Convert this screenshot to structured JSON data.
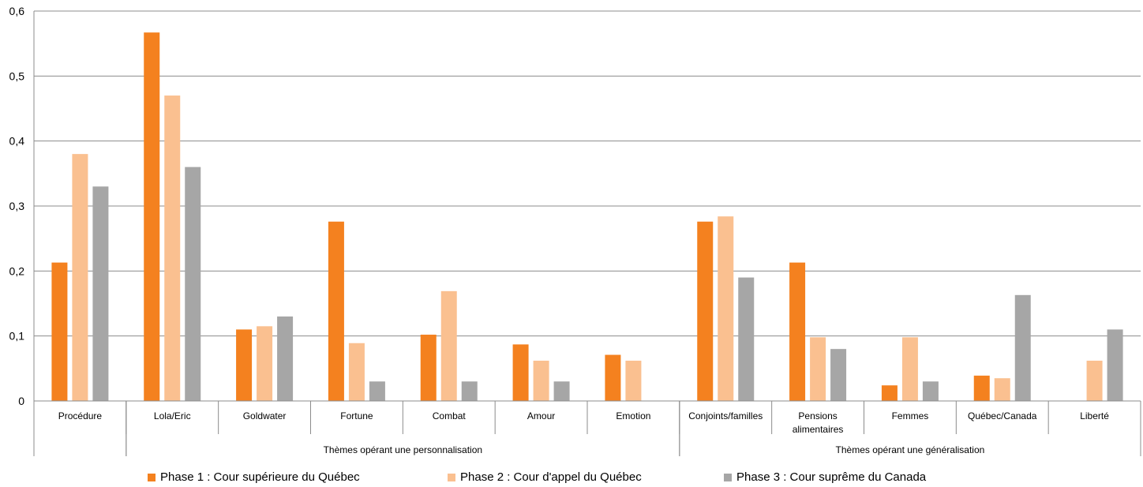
{
  "chart_data": {
    "type": "bar",
    "categories": [
      "Procédure",
      "Lola/Eric",
      "Goldwater",
      "Fortune",
      "Combat",
      "Amour",
      "Emotion",
      "Conjoints/familles",
      "Pensions alimentaires",
      "Femmes",
      "Québec/Canada",
      "Liberté"
    ],
    "category_lines": [
      [
        "Procédure"
      ],
      [
        "Lola/Eric"
      ],
      [
        "Goldwater"
      ],
      [
        "Fortune"
      ],
      [
        "Combat"
      ],
      [
        "Amour"
      ],
      [
        "Emotion"
      ],
      [
        "Conjoints/familles"
      ],
      [
        "Pensions",
        "alimentaires"
      ],
      [
        "Femmes"
      ],
      [
        "Québec/Canada"
      ],
      [
        "Liberté"
      ]
    ],
    "groups": [
      {
        "label": "",
        "categories": [
          "Procédure"
        ]
      },
      {
        "label": "Thèmes opérant une personnalisation",
        "categories": [
          "Lola/Eric",
          "Goldwater",
          "Fortune",
          "Combat",
          "Amour",
          "Emotion"
        ]
      },
      {
        "label": "Thèmes opérant une généralisation",
        "categories": [
          "Conjoints/familles",
          "Pensions alimentaires",
          "Femmes",
          "Québec/Canada",
          "Liberté"
        ]
      }
    ],
    "series": [
      {
        "name": "Phase 1 : Cour supérieure du Québec",
        "color": "#f4811f",
        "values": [
          0.213,
          0.567,
          0.11,
          0.276,
          0.102,
          0.087,
          0.071,
          0.276,
          0.213,
          0.024,
          0.039,
          0
        ]
      },
      {
        "name": "Phase 2 : Cour d'appel du Québec",
        "color": "#fac090",
        "values": [
          0.38,
          0.47,
          0.115,
          0.089,
          0.169,
          0.062,
          0.062,
          0.284,
          0.098,
          0.098,
          0.035,
          0.062
        ]
      },
      {
        "name": "Phase 3 : Cour suprême du Canada",
        "color": "#a6a6a6",
        "values": [
          0.33,
          0.36,
          0.13,
          0.03,
          0.03,
          0.03,
          0,
          0.19,
          0.08,
          0.03,
          0.163,
          0.11
        ]
      }
    ],
    "ylim": [
      0,
      0.6
    ],
    "yticks": [
      0,
      0.1,
      0.2,
      0.3,
      0.4,
      0.5,
      0.6
    ],
    "ytick_labels": [
      "0",
      "0,1",
      "0,2",
      "0,3",
      "0,4",
      "0,5",
      "0,6"
    ],
    "grid": true,
    "legend_position": "bottom",
    "title": "",
    "xlabel": "",
    "ylabel": ""
  }
}
